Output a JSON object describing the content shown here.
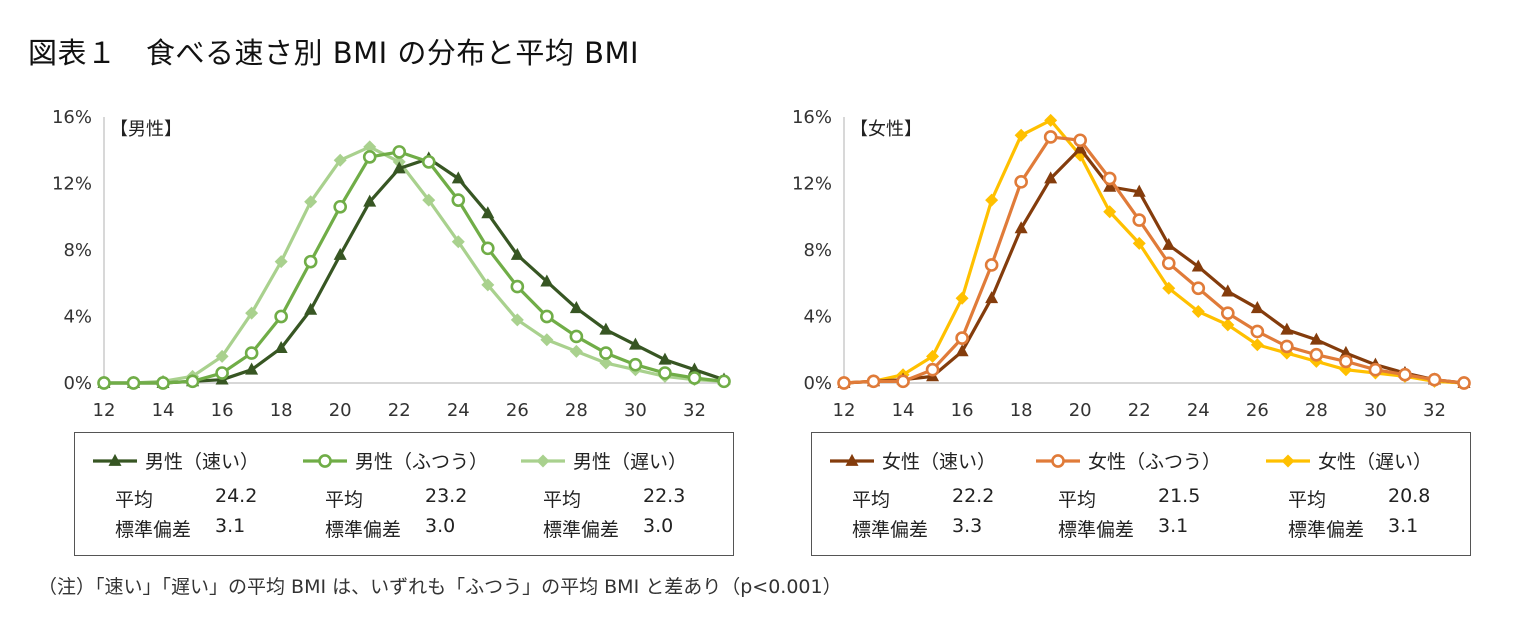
{
  "figure_title": "図表１　食べる速さ別 BMI の分布と平均 BMI",
  "note": "（注）「速い」「遅い」の平均 BMI は、いずれも「ふつう」の平均 BMI と差あり（p<0.001）",
  "stat_labels": {
    "mean": "平均",
    "sd": "標準偏差"
  },
  "chart_data": [
    {
      "type": "line",
      "panel_label": "【男性】",
      "x": [
        12,
        13,
        14,
        15,
        16,
        17,
        18,
        19,
        20,
        21,
        22,
        23,
        24,
        25,
        26,
        27,
        28,
        29,
        30,
        31,
        32,
        33
      ],
      "xticks": [
        "12",
        "14",
        "16",
        "18",
        "20",
        "22",
        "24",
        "26",
        "28",
        "30",
        "32"
      ],
      "yticks": [
        "0%",
        "4%",
        "8%",
        "12%",
        "16%"
      ],
      "xlim": [
        12,
        33
      ],
      "ylim": [
        0,
        16
      ],
      "series": [
        {
          "name": "男性（速い）",
          "marker": "triangle",
          "color": "#375623",
          "mean": "24.2",
          "sd": "3.1",
          "values": [
            0,
            0,
            0,
            0.1,
            0.2,
            0.8,
            2.1,
            4.4,
            7.7,
            10.9,
            12.9,
            13.5,
            12.3,
            10.2,
            7.7,
            6.1,
            4.5,
            3.2,
            2.3,
            1.4,
            0.8,
            0.2
          ]
        },
        {
          "name": "男性（ふつう）",
          "marker": "circle-open",
          "color": "#70AD47",
          "mean": "23.2",
          "sd": "3.0",
          "values": [
            0,
            0,
            0,
            0.1,
            0.6,
            1.8,
            4.0,
            7.3,
            10.6,
            13.6,
            13.9,
            13.3,
            11.0,
            8.1,
            5.8,
            4.0,
            2.8,
            1.8,
            1.1,
            0.6,
            0.3,
            0.1
          ]
        },
        {
          "name": "男性（遅い）",
          "marker": "diamond",
          "color": "#A9D18E",
          "mean": "22.3",
          "sd": "3.0",
          "values": [
            0,
            0,
            0.1,
            0.4,
            1.6,
            4.2,
            7.3,
            10.9,
            13.4,
            14.2,
            13.3,
            11.0,
            8.5,
            5.9,
            3.8,
            2.6,
            1.9,
            1.2,
            0.8,
            0.4,
            0.2,
            0.1
          ]
        }
      ]
    },
    {
      "type": "line",
      "panel_label": "【女性】",
      "x": [
        12,
        13,
        14,
        15,
        16,
        17,
        18,
        19,
        20,
        21,
        22,
        23,
        24,
        25,
        26,
        27,
        28,
        29,
        30,
        31,
        32,
        33
      ],
      "xticks": [
        "12",
        "14",
        "16",
        "18",
        "20",
        "22",
        "24",
        "26",
        "28",
        "30",
        "32"
      ],
      "yticks": [
        "0%",
        "4%",
        "8%",
        "12%",
        "16%"
      ],
      "xlim": [
        12,
        33
      ],
      "ylim": [
        0,
        16
      ],
      "series": [
        {
          "name": "女性（速い）",
          "marker": "triangle",
          "color": "#843C0C",
          "mean": "22.2",
          "sd": "3.3",
          "values": [
            0,
            0.1,
            0.2,
            0.4,
            1.9,
            5.1,
            9.3,
            12.3,
            14.1,
            11.8,
            11.5,
            8.3,
            7.0,
            5.5,
            4.5,
            3.2,
            2.6,
            1.8,
            1.1,
            0.6,
            0.2,
            0
          ]
        },
        {
          "name": "女性（ふつう）",
          "marker": "circle-open",
          "color": "#F4B183",
          "stroke": "#E07B39",
          "mean": "21.5",
          "sd": "3.1",
          "values": [
            0,
            0.1,
            0.1,
            0.8,
            2.7,
            7.1,
            12.1,
            14.8,
            14.6,
            12.3,
            9.8,
            7.2,
            5.7,
            4.2,
            3.1,
            2.2,
            1.7,
            1.3,
            0.8,
            0.5,
            0.2,
            0
          ]
        },
        {
          "name": "女性（遅い）",
          "marker": "diamond",
          "color": "#FFC000",
          "mean": "20.8",
          "sd": "3.1",
          "values": [
            0,
            0.1,
            0.5,
            1.6,
            5.1,
            11.0,
            14.9,
            15.8,
            13.7,
            10.3,
            8.4,
            5.7,
            4.3,
            3.5,
            2.3,
            1.8,
            1.3,
            0.8,
            0.6,
            0.4,
            0.1,
            0
          ]
        }
      ]
    }
  ]
}
